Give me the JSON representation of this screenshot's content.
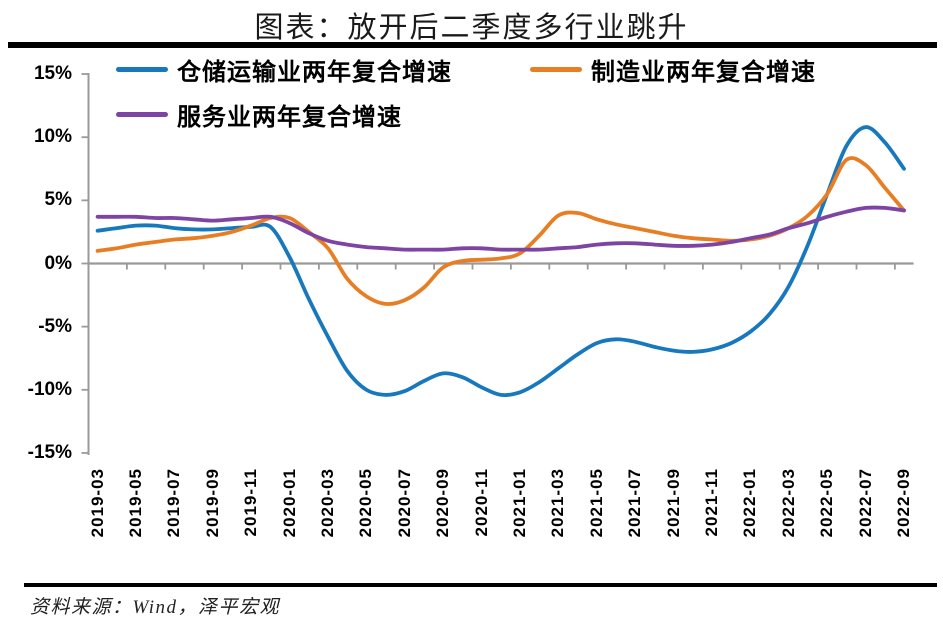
{
  "title": "图表：放开后二季度多行业跳升",
  "source": "资料来源：Wind，泽平宏观",
  "chart_data": {
    "type": "line",
    "title": "图表：放开后二季度多行业跳升",
    "unit": "%",
    "ylim": [
      -15,
      15
    ],
    "y_ticks": [
      "15%",
      "10%",
      "5%",
      "0%",
      "-5%",
      "-10%",
      "-15%"
    ],
    "x_tick_labels": [
      "2019-03",
      "2019-05",
      "2019-07",
      "2019-09",
      "2019-11",
      "2020-01",
      "2020-03",
      "2020-05",
      "2020-07",
      "2020-09",
      "2020-11",
      "2021-01",
      "2021-03",
      "2021-05",
      "2021-07",
      "2021-09",
      "2021-11",
      "2022-01",
      "2022-03",
      "2022-05",
      "2022-07",
      "2022-09"
    ],
    "x": [
      "2019-03",
      "2019-04",
      "2019-05",
      "2019-06",
      "2019-07",
      "2019-08",
      "2019-09",
      "2019-10",
      "2019-11",
      "2019-12",
      "2020-01",
      "2020-02",
      "2020-03",
      "2020-04",
      "2020-05",
      "2020-06",
      "2020-07",
      "2020-08",
      "2020-09",
      "2020-10",
      "2020-11",
      "2020-12",
      "2021-01",
      "2021-02",
      "2021-03",
      "2021-04",
      "2021-05",
      "2021-06",
      "2021-07",
      "2021-08",
      "2021-09",
      "2021-10",
      "2021-11",
      "2021-12",
      "2022-01",
      "2022-02",
      "2022-03",
      "2022-04",
      "2022-05",
      "2022-06",
      "2022-07",
      "2022-08",
      "2022-09"
    ],
    "series": [
      {
        "name": "仓储运输业两年复合增速",
        "color": "#1878be",
        "values": [
          2.6,
          2.8,
          3.0,
          3.0,
          2.8,
          2.7,
          2.7,
          2.8,
          2.9,
          2.9,
          0.5,
          -2.8,
          -5.8,
          -8.5,
          -10.0,
          -10.4,
          -10.1,
          -9.3,
          -8.7,
          -9.0,
          -9.8,
          -10.4,
          -10.2,
          -9.4,
          -8.3,
          -7.2,
          -6.3,
          -6.0,
          -6.2,
          -6.6,
          -6.9,
          -7.0,
          -6.8,
          -6.3,
          -5.4,
          -4.0,
          -1.8,
          1.5,
          5.5,
          9.3,
          10.8,
          9.6,
          7.5
        ]
      },
      {
        "name": "制造业两年复合增速",
        "color": "#e87e23",
        "values": [
          1.0,
          1.2,
          1.5,
          1.7,
          1.9,
          2.0,
          2.2,
          2.5,
          3.0,
          3.6,
          3.6,
          2.5,
          1.2,
          -1.2,
          -2.6,
          -3.2,
          -2.9,
          -1.9,
          -0.3,
          0.2,
          0.3,
          0.4,
          0.8,
          2.2,
          3.8,
          4.0,
          3.5,
          3.1,
          2.8,
          2.5,
          2.2,
          2.0,
          1.9,
          1.8,
          1.9,
          2.2,
          2.8,
          3.8,
          5.5,
          8.2,
          7.8,
          6.0,
          4.2
        ]
      },
      {
        "name": "服务业两年复合增速",
        "color": "#7d44a4",
        "values": [
          3.7,
          3.7,
          3.7,
          3.6,
          3.6,
          3.5,
          3.4,
          3.5,
          3.6,
          3.7,
          3.2,
          2.4,
          1.8,
          1.5,
          1.3,
          1.2,
          1.1,
          1.1,
          1.1,
          1.2,
          1.2,
          1.1,
          1.1,
          1.1,
          1.2,
          1.3,
          1.5,
          1.6,
          1.6,
          1.5,
          1.4,
          1.4,
          1.5,
          1.7,
          2.0,
          2.3,
          2.8,
          3.2,
          3.7,
          4.1,
          4.4,
          4.4,
          4.2
        ]
      }
    ],
    "axis_color": "#9a9a9a",
    "legend_position": "top-left-two-rows",
    "grid": false
  }
}
